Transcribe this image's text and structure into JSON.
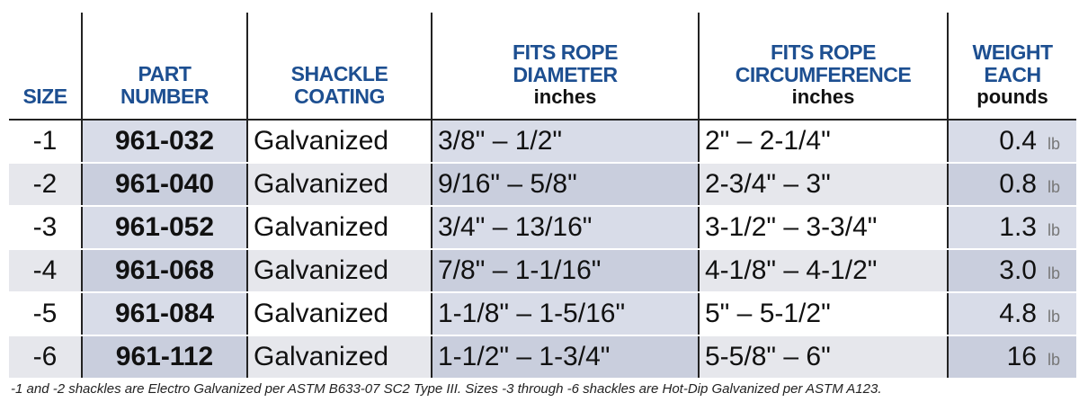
{
  "table": {
    "columns": [
      {
        "title": [
          "SIZE"
        ]
      },
      {
        "title": [
          "PART",
          "NUMBER"
        ]
      },
      {
        "title": [
          "SHACKLE",
          "COATING"
        ]
      },
      {
        "title": [
          "FITS ROPE",
          "DIAMETER"
        ],
        "unit": "inches"
      },
      {
        "title": [
          "FITS ROPE",
          "CIRCUMFERENCE"
        ],
        "unit": "inches"
      },
      {
        "title": [
          "WEIGHT",
          "EACH"
        ],
        "unit": "pounds"
      }
    ],
    "rows": [
      [
        "-1",
        "961-032",
        "Galvanized",
        "3/8\" – 1/2\"",
        "2\" – 2-1/4\"",
        {
          "value": "0.4",
          "unit": "lb"
        }
      ],
      [
        "-2",
        "961-040",
        "Galvanized",
        "9/16\" – 5/8\"",
        "2-3/4\" – 3\"",
        {
          "value": "0.8",
          "unit": "lb"
        }
      ],
      [
        "-3",
        "961-052",
        "Galvanized",
        "3/4\" – 13/16\"",
        "3-1/2\" – 3-3/4\"",
        {
          "value": "1.3",
          "unit": "lb"
        }
      ],
      [
        "-4",
        "961-068",
        "Galvanized",
        "7/8\" – 1-1/16\"",
        "4-1/8\" – 4-1/2\"",
        {
          "value": "3.0",
          "unit": "lb"
        }
      ],
      [
        "-5",
        "961-084",
        "Galvanized",
        "1-1/8\" – 1-5/16\"",
        "5\" – 5-1/2\"",
        {
          "value": "4.8",
          "unit": "lb"
        }
      ],
      [
        "-6",
        "961-112",
        "Galvanized",
        "1-1/2\" – 1-3/4\"",
        "5-5/8\" – 6\"",
        {
          "value": "16",
          "unit": "lb"
        }
      ]
    ],
    "footnote": "-1 and -2 shackles are Electro Galvanized per ASTM B633-07 SC2 Type III. Sizes -3 through -6 shackles are Hot-Dip Galvanized per ASTM A123."
  }
}
